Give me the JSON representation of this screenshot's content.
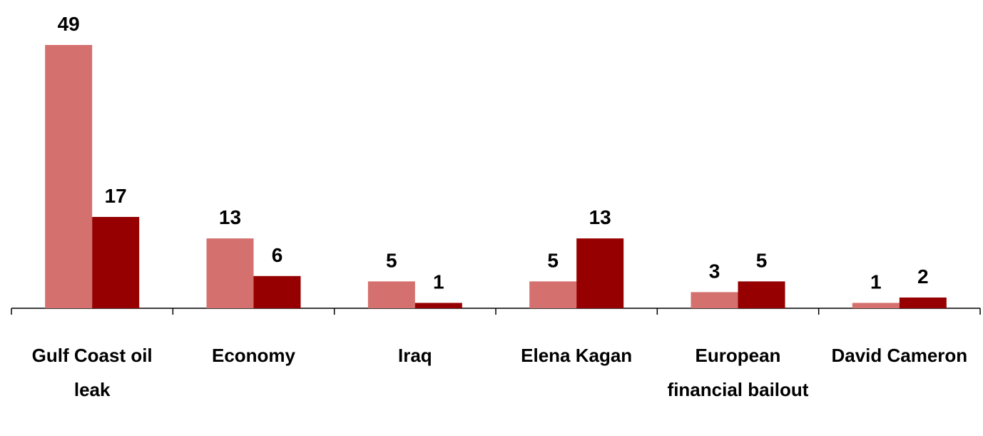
{
  "chart_data": {
    "type": "bar",
    "categories": [
      "Gulf Coast oil leak",
      "Economy",
      "Iraq",
      "Elena Kagan",
      "European financial bailout",
      "David Cameron"
    ],
    "series": [
      {
        "color": "#d4706e",
        "values": [
          49,
          13,
          5,
          5,
          3,
          1
        ]
      },
      {
        "color": "#960000",
        "values": [
          17,
          6,
          1,
          13,
          5,
          2
        ]
      }
    ],
    "ylim": [
      0,
      55
    ]
  }
}
